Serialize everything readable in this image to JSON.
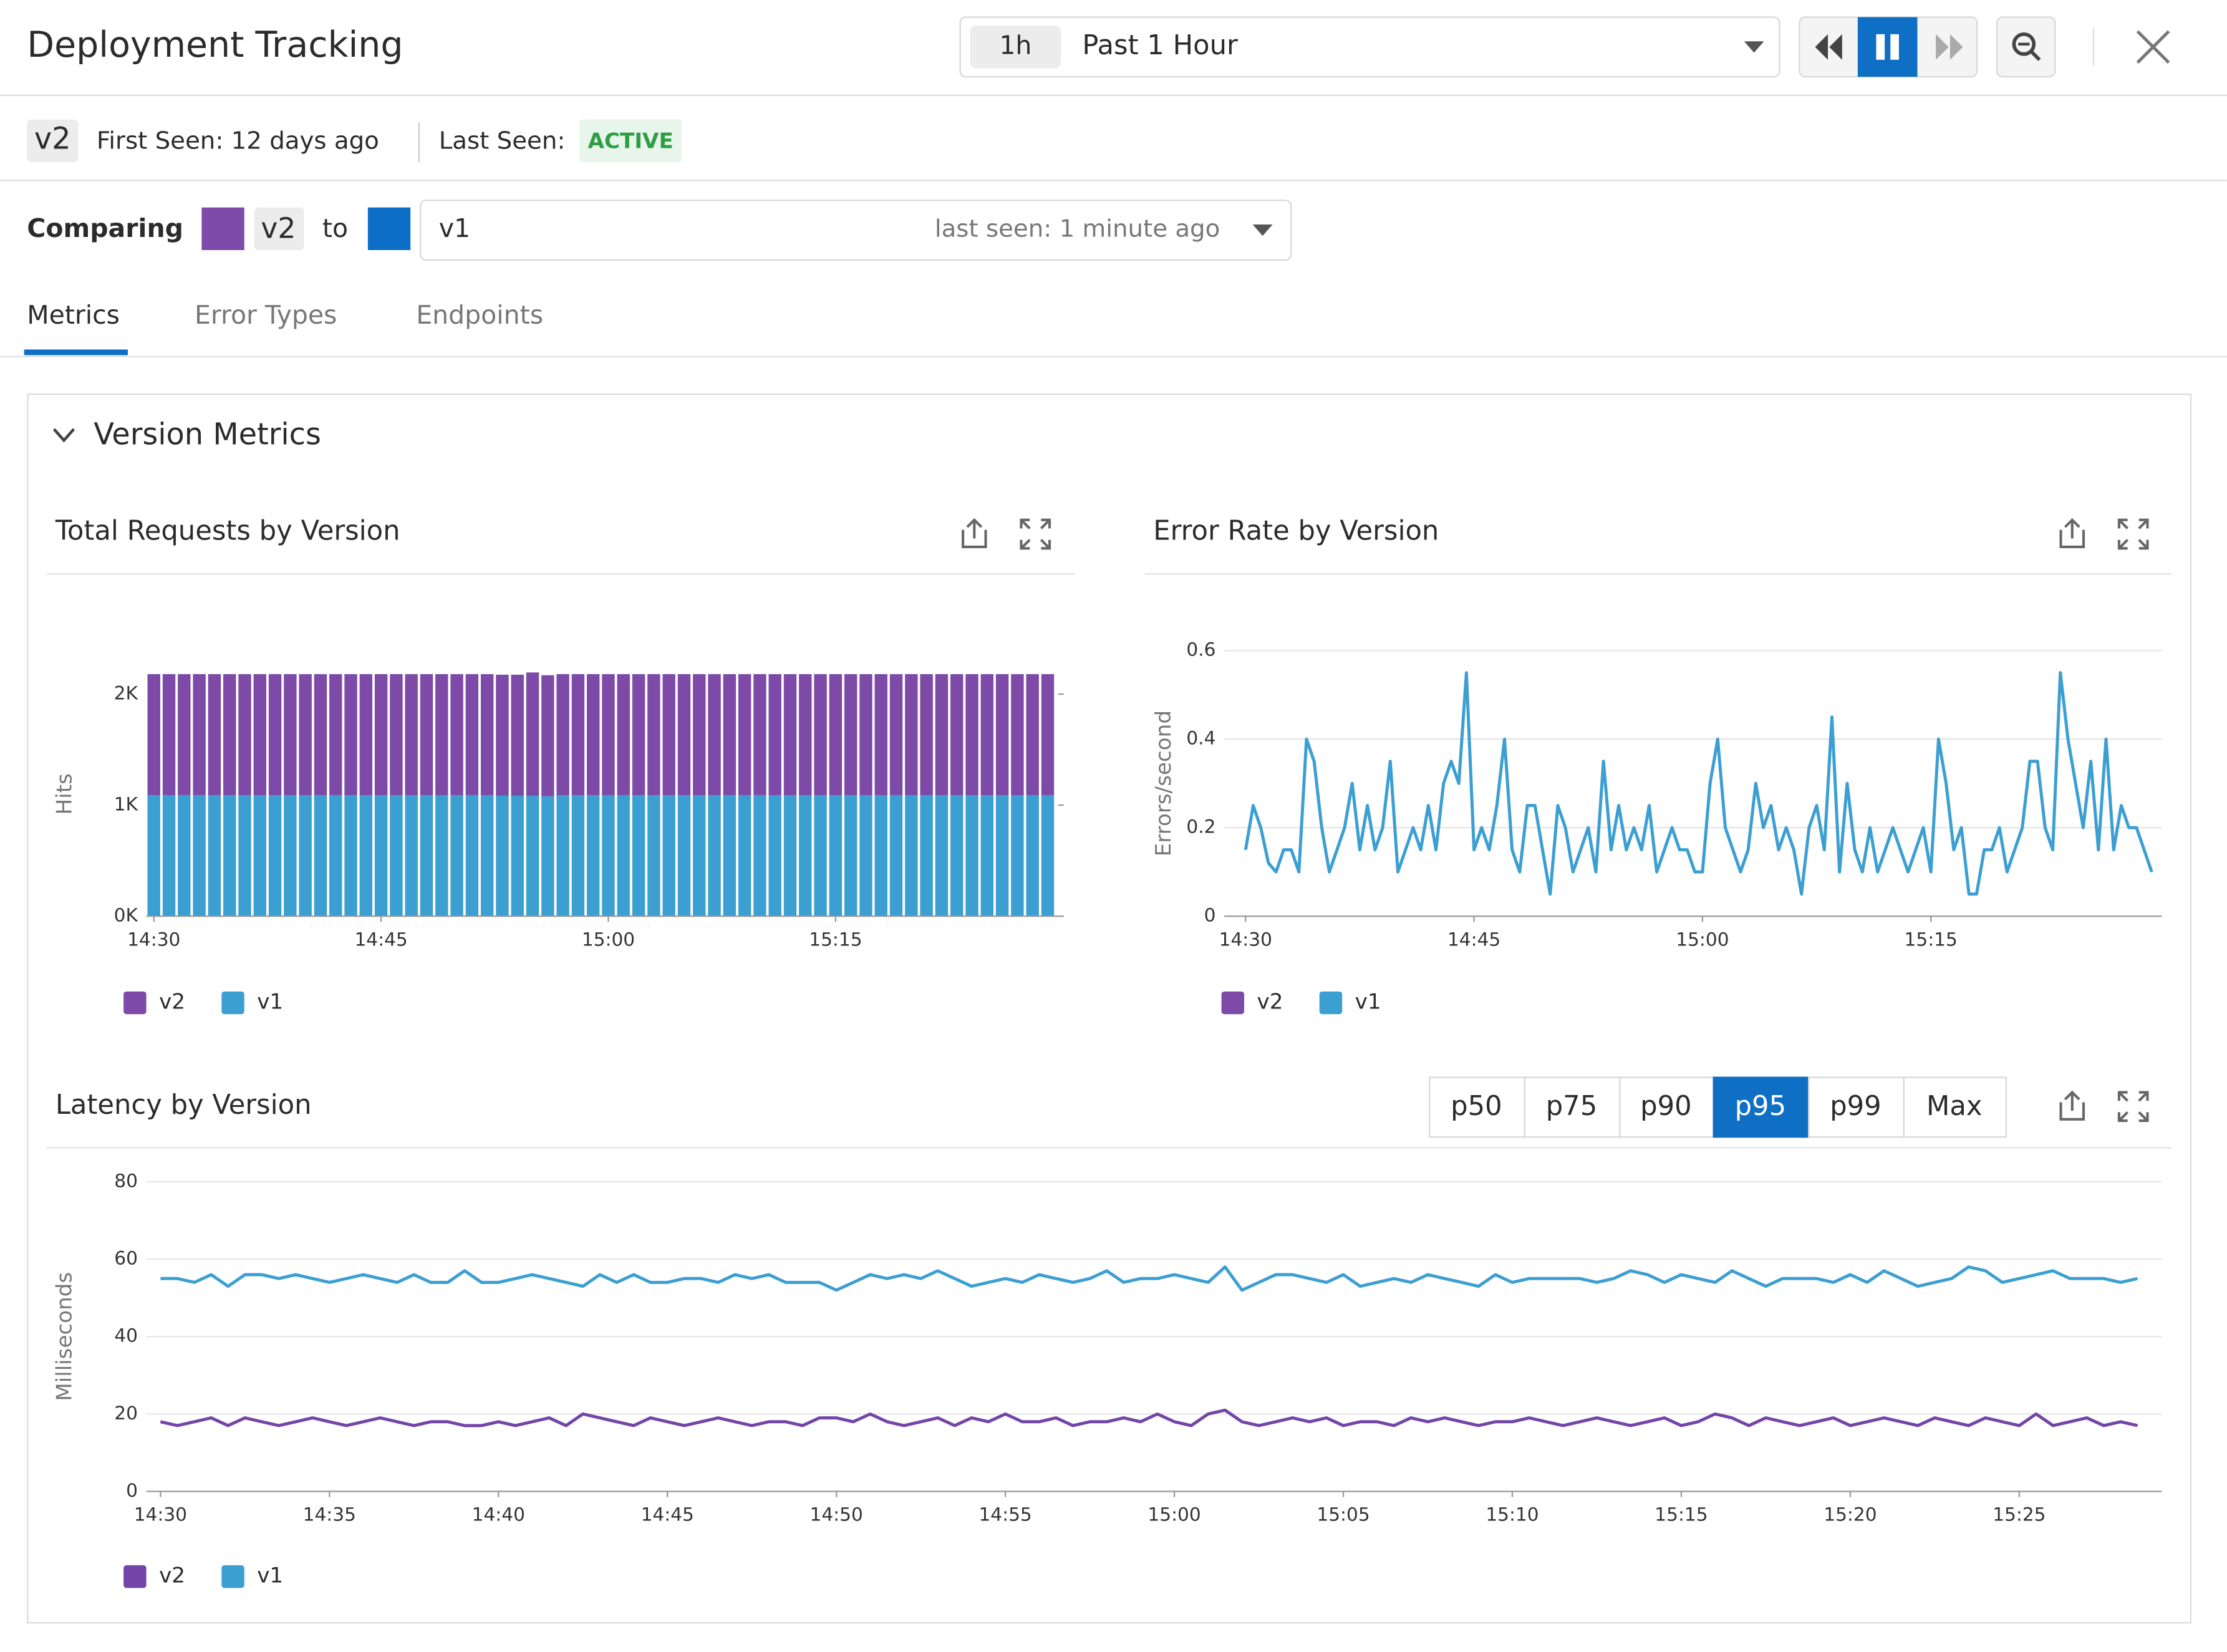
{
  "header": {
    "title": "Deployment Tracking",
    "time_badge": "1h",
    "time_range": "Past 1 Hour"
  },
  "version_info": {
    "version": "v2",
    "first_seen": "First Seen: 12 days ago",
    "last_seen_label": "Last Seen:",
    "status": "ACTIVE"
  },
  "comparing": {
    "label": "Comparing",
    "version": "v2",
    "to": "to",
    "other_version": "v1",
    "other_last_seen": "last seen: 1 minute ago"
  },
  "tabs": [
    "Metrics",
    "Error Types",
    "Endpoints"
  ],
  "section_title": "Version Metrics",
  "percentile_buttons": [
    "p50",
    "p75",
    "p90",
    "p95",
    "p99",
    "Max"
  ],
  "active_percentile": 3,
  "chart_data": [
    {
      "type": "bar",
      "stacked": true,
      "title": "Total Requests by Version",
      "y_label": "Hits",
      "grid": false,
      "categories": [
        "14:30",
        null,
        null,
        null,
        null,
        null,
        null,
        null,
        null,
        null,
        null,
        null,
        null,
        null,
        null,
        "14:45",
        null,
        null,
        null,
        null,
        null,
        null,
        null,
        null,
        null,
        null,
        null,
        null,
        null,
        null,
        "15:00",
        null,
        null,
        null,
        null,
        null,
        null,
        null,
        null,
        null,
        null,
        null,
        null,
        null,
        null,
        "15:15",
        null,
        null,
        null,
        null,
        null,
        null,
        null,
        null,
        null,
        null,
        null,
        null,
        null,
        null
      ],
      "series": [
        {
          "name": "v2",
          "color": "#7d4aa8",
          "values": [
            1090,
            1090,
            1090,
            1090,
            1090,
            1090,
            1090,
            1090,
            1090,
            1090,
            1090,
            1090,
            1090,
            1090,
            1090,
            1090,
            1090,
            1090,
            1090,
            1090,
            1090,
            1090,
            1090,
            1090,
            1090,
            1110,
            1090,
            1090,
            1090,
            1090,
            1090,
            1090,
            1090,
            1090,
            1090,
            1090,
            1090,
            1090,
            1090,
            1090,
            1090,
            1090,
            1090,
            1090,
            1090,
            1090,
            1090,
            1090,
            1090,
            1090,
            1090,
            1090,
            1090,
            1090,
            1090,
            1090,
            1090,
            1090,
            1090,
            1090
          ]
        },
        {
          "name": "v1",
          "color": "#3c9fd2",
          "values": [
            1090,
            1090,
            1090,
            1090,
            1090,
            1090,
            1090,
            1090,
            1090,
            1090,
            1090,
            1090,
            1090,
            1090,
            1090,
            1090,
            1090,
            1090,
            1090,
            1090,
            1090,
            1090,
            1090,
            1085,
            1085,
            1085,
            1080,
            1090,
            1090,
            1090,
            1090,
            1090,
            1090,
            1090,
            1090,
            1090,
            1090,
            1090,
            1090,
            1090,
            1090,
            1090,
            1090,
            1090,
            1090,
            1090,
            1090,
            1090,
            1090,
            1090,
            1090,
            1090,
            1090,
            1090,
            1090,
            1090,
            1090,
            1090,
            1090,
            1090
          ]
        }
      ],
      "ylim": [
        0,
        2200
      ],
      "yticks": [
        {
          "value": 0,
          "label": "0K"
        },
        {
          "value": 1000,
          "label": "1K"
        },
        {
          "value": 2000,
          "label": "2K"
        }
      ]
    },
    {
      "type": "line",
      "title": "Error Rate by Version",
      "y_label": "Errors/second",
      "grid": true,
      "categories": [
        "14:30",
        null,
        null,
        null,
        null,
        null,
        null,
        null,
        null,
        null,
        null,
        null,
        null,
        null,
        null,
        null,
        null,
        null,
        null,
        null,
        null,
        null,
        null,
        null,
        null,
        null,
        null,
        null,
        null,
        null,
        "14:45",
        null,
        null,
        null,
        null,
        null,
        null,
        null,
        null,
        null,
        null,
        null,
        null,
        null,
        null,
        null,
        null,
        null,
        null,
        null,
        null,
        null,
        null,
        null,
        null,
        null,
        null,
        null,
        null,
        null,
        "15:00",
        null,
        null,
        null,
        null,
        null,
        null,
        null,
        null,
        null,
        null,
        null,
        null,
        null,
        null,
        null,
        null,
        null,
        null,
        null,
        null,
        null,
        null,
        null,
        null,
        null,
        null,
        null,
        null,
        null,
        "15:15",
        null,
        null,
        null,
        null,
        null,
        null,
        null,
        null,
        null,
        null,
        null,
        null,
        null,
        null,
        null,
        null,
        null,
        null,
        null,
        null,
        null,
        null,
        null,
        null,
        null,
        null,
        null,
        null,
        null
      ],
      "series": [
        {
          "name": "v2",
          "color": "#7d4aa8",
          "values": [
            null,
            null,
            null,
            null,
            null,
            null,
            null,
            null,
            null,
            null,
            null,
            null,
            null,
            null,
            null,
            null,
            null,
            null,
            null,
            null,
            null,
            null,
            null,
            null,
            null,
            null,
            null,
            null,
            null,
            null,
            null,
            null,
            null,
            null,
            null,
            null,
            null,
            null,
            null,
            null,
            null,
            null,
            null,
            null,
            null,
            null,
            null,
            null,
            null,
            null,
            null,
            null,
            null,
            null,
            null,
            null,
            null,
            null,
            null,
            null,
            null,
            null,
            null,
            null,
            null,
            null,
            null,
            null,
            null,
            null,
            null,
            null,
            null,
            null,
            null,
            null,
            null,
            null,
            null,
            null,
            null,
            null,
            null,
            null,
            null,
            null,
            null,
            null,
            null,
            null,
            null,
            null,
            null,
            null,
            null,
            null,
            null,
            null,
            null,
            null,
            null,
            null,
            null,
            null,
            null,
            null,
            null,
            null,
            null,
            null,
            null,
            null,
            null,
            null,
            null,
            null,
            null,
            null,
            null,
            null
          ]
        },
        {
          "name": "v1",
          "color": "#3c9fd2",
          "values": [
            0.15,
            0.25,
            0.2,
            0.12,
            0.1,
            0.15,
            0.15,
            0.1,
            0.4,
            0.35,
            0.2,
            0.1,
            0.15,
            0.2,
            0.3,
            0.15,
            0.25,
            0.15,
            0.2,
            0.35,
            0.1,
            0.15,
            0.2,
            0.15,
            0.25,
            0.15,
            0.3,
            0.35,
            0.3,
            0.55,
            0.15,
            0.2,
            0.15,
            0.25,
            0.4,
            0.15,
            0.1,
            0.25,
            0.25,
            0.15,
            0.05,
            0.25,
            0.2,
            0.1,
            0.15,
            0.2,
            0.1,
            0.35,
            0.15,
            0.25,
            0.15,
            0.2,
            0.15,
            0.25,
            0.1,
            0.15,
            0.2,
            0.15,
            0.15,
            0.1,
            0.1,
            0.3,
            0.4,
            0.2,
            0.15,
            0.1,
            0.15,
            0.3,
            0.2,
            0.25,
            0.15,
            0.2,
            0.15,
            0.05,
            0.2,
            0.25,
            0.15,
            0.45,
            0.1,
            0.3,
            0.15,
            0.1,
            0.2,
            0.1,
            0.15,
            0.2,
            0.15,
            0.1,
            0.15,
            0.2,
            0.1,
            0.4,
            0.3,
            0.15,
            0.2,
            0.05,
            0.05,
            0.15,
            0.15,
            0.2,
            0.1,
            0.15,
            0.2,
            0.35,
            0.35,
            0.2,
            0.15,
            0.55,
            0.4,
            0.3,
            0.2,
            0.35,
            0.15,
            0.4,
            0.15,
            0.25,
            0.2,
            0.2,
            0.15,
            0.1
          ]
        }
      ],
      "ylim": [
        0,
        0.6
      ],
      "yticks": [
        0,
        0.2,
        0.4,
        0.6
      ]
    },
    {
      "type": "line",
      "title": "Latency by Version",
      "y_label": "Milliseconds",
      "grid": true,
      "categories": [
        "14:30",
        null,
        null,
        null,
        null,
        null,
        null,
        null,
        null,
        null,
        "14:35",
        null,
        null,
        null,
        null,
        null,
        null,
        null,
        null,
        null,
        "14:40",
        null,
        null,
        null,
        null,
        null,
        null,
        null,
        null,
        null,
        "14:45",
        null,
        null,
        null,
        null,
        null,
        null,
        null,
        null,
        null,
        "14:50",
        null,
        null,
        null,
        null,
        null,
        null,
        null,
        null,
        null,
        "14:55",
        null,
        null,
        null,
        null,
        null,
        null,
        null,
        null,
        null,
        "15:00",
        null,
        null,
        null,
        null,
        null,
        null,
        null,
        null,
        null,
        "15:05",
        null,
        null,
        null,
        null,
        null,
        null,
        null,
        null,
        null,
        "15:10",
        null,
        null,
        null,
        null,
        null,
        null,
        null,
        null,
        null,
        "15:15",
        null,
        null,
        null,
        null,
        null,
        null,
        null,
        null,
        null,
        "15:20",
        null,
        null,
        null,
        null,
        null,
        null,
        null,
        null,
        null,
        "15:25",
        null,
        null,
        null,
        null,
        null,
        null,
        null
      ],
      "series": [
        {
          "name": "v2",
          "color": "#7445a8",
          "values": [
            18,
            17,
            18,
            19,
            17,
            19,
            18,
            17,
            18,
            19,
            18,
            17,
            18,
            19,
            18,
            17,
            18,
            18,
            17,
            17,
            18,
            17,
            18,
            19,
            17,
            20,
            19,
            18,
            17,
            19,
            18,
            17,
            18,
            19,
            18,
            17,
            18,
            18,
            17,
            19,
            19,
            18,
            20,
            18,
            17,
            18,
            19,
            17,
            19,
            18,
            20,
            18,
            18,
            19,
            17,
            18,
            18,
            19,
            18,
            20,
            18,
            17,
            20,
            21,
            18,
            17,
            18,
            19,
            18,
            19,
            17,
            18,
            18,
            17,
            19,
            18,
            19,
            18,
            17,
            18,
            18,
            19,
            18,
            17,
            18,
            19,
            18,
            17,
            18,
            19,
            17,
            18,
            20,
            19,
            17,
            19,
            18,
            17,
            18,
            19,
            17,
            18,
            19,
            18,
            17,
            19,
            18,
            17,
            19,
            18,
            17,
            20,
            17,
            18,
            19,
            17,
            18,
            17
          ]
        },
        {
          "name": "v1",
          "color": "#3c9fd2",
          "values": [
            55,
            55,
            54,
            56,
            53,
            56,
            56,
            55,
            56,
            55,
            54,
            55,
            56,
            55,
            54,
            56,
            54,
            54,
            57,
            54,
            54,
            55,
            56,
            55,
            54,
            53,
            56,
            54,
            56,
            54,
            54,
            55,
            55,
            54,
            56,
            55,
            56,
            54,
            54,
            54,
            52,
            54,
            56,
            55,
            56,
            55,
            57,
            55,
            53,
            54,
            55,
            54,
            56,
            55,
            54,
            55,
            57,
            54,
            55,
            55,
            56,
            55,
            54,
            58,
            52,
            54,
            56,
            56,
            55,
            54,
            56,
            53,
            54,
            55,
            54,
            56,
            55,
            54,
            53,
            56,
            54,
            55,
            55,
            55,
            55,
            54,
            55,
            57,
            56,
            54,
            56,
            55,
            54,
            57,
            55,
            53,
            55,
            55,
            55,
            54,
            56,
            54,
            57,
            55,
            53,
            54,
            55,
            58,
            57,
            54,
            55,
            56,
            57,
            55,
            55,
            55,
            54,
            55
          ]
        }
      ],
      "ylim": [
        0,
        80
      ],
      "yticks": [
        0,
        20,
        40,
        60,
        80
      ]
    }
  ]
}
